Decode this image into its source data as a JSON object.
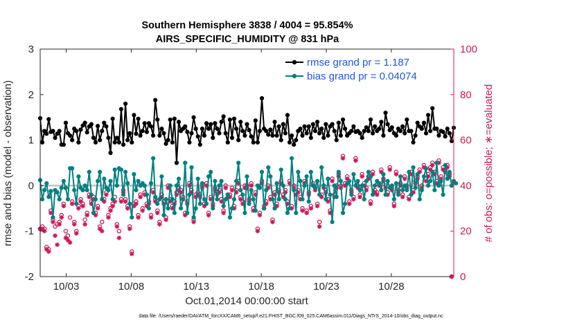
{
  "chart_data": {
    "type": "line",
    "title": "Southern Hemisphere 3838 / 4004 = 95.854%",
    "subtitle": "AIRS_SPECIFIC_HUMIDITY @ 831 hPa",
    "xlabel": "Oct.01,2014 00:00:00 start",
    "ylabel": "rmse and bias (model - observation)",
    "ylabel_right": "# of obs: o=possible; ∗=evaluated",
    "footnote": "data file: /Users/raeder/DAI/ATM_forcXX/CAM6_setup/f.e21.FHIST_BGC.f09_025.CAM6assim.011/Diags_NTrS_2014-10/obs_diag_output.nc",
    "xlim": [
      1,
      32.8
    ],
    "ylim": [
      -2,
      3
    ],
    "ylim_right": [
      0,
      100
    ],
    "x_ticks": [
      3,
      8,
      13,
      18,
      23,
      28
    ],
    "x_tick_labels": [
      "10/03",
      "10/08",
      "10/13",
      "10/18",
      "10/23",
      "10/28"
    ],
    "y_ticks": [
      -2,
      -1,
      0,
      1,
      2,
      3
    ],
    "y_tick_labels": [
      "-2",
      "-1",
      "0",
      "1",
      "2",
      "3"
    ],
    "y_right_ticks": [
      0,
      20,
      40,
      60,
      80,
      100
    ],
    "y_right_tick_labels": [
      "0",
      "20",
      "40",
      "60",
      "80",
      "100"
    ],
    "colors": {
      "rmse": "#000000",
      "bias": "#008080",
      "obs": "#cc1a59",
      "zero": "#bfbfbf",
      "legend_text": "#1f57d6"
    },
    "series": [
      {
        "name": "rmse",
        "legend": "rmse grand pr = 1.187",
        "values": [
          1.48,
          0.95,
          1.2,
          1.14,
          1.46,
          1.18,
          1.2,
          1.05,
          1.14,
          1.2,
          0.9,
          0.9,
          1.38,
          1.15,
          1.1,
          1.0,
          1.25,
          1.2,
          0.95,
          1.23,
          1.32,
          1.38,
          1.17,
          1.3,
          1.35,
          1.05,
          0.95,
          1.31,
          1.0,
          1.2,
          1.38,
          1.3,
          1.05,
          0.72,
          1.47,
          0.95,
          1.05,
          0.95,
          1.68,
          0.9,
          1.8,
          1.0,
          1.15,
          0.95,
          1.55,
          1.14,
          1.47,
          1.1,
          1.2,
          1.37,
          1.18,
          1.37,
          1.3,
          1.1,
          1.88,
          1.45,
          1.1,
          1.25,
          1.15,
          0.92,
          1.0,
          1.45,
          0.95,
          1.47,
          0.5,
          1.4,
          1.2,
          1.25,
          1.3,
          1.18,
          0.95,
          1.15,
          1.5,
          1.25,
          1.08,
          0.9,
          1.25,
          1.1,
          1.37,
          1.25,
          1.35,
          1.05,
          1.37,
          1.25,
          1.15,
          1.4,
          1.52,
          1.15,
          0.95,
          1.45,
          1.05,
          1.47,
          1.25,
          1.0,
          1.4,
          1.2,
          1.1,
          1.35,
          1.22,
          1.08,
          0.95,
          1.43,
          0.95,
          1.2,
          1.92,
          1.25,
          1.2,
          1.12,
          1.23,
          1.1,
          1.4,
          1.1,
          1.3,
          1.0,
          1.35,
          1.15,
          1.55,
          0.95,
          1.1,
          0.9,
          1.0,
          1.2,
          1.25,
          1.1,
          1.3,
          1.15,
          1.3,
          1.05,
          1.35,
          1.2,
          1.4,
          1.15,
          1.25,
          1.05,
          1.35,
          1.1,
          1.3,
          1.35,
          1.2,
          1.0,
          1.38,
          1.1,
          1.45,
          1.25,
          1.1,
          1.15,
          1.2,
          1.3,
          1.18,
          1.2,
          1.15,
          1.05,
          1.2,
          1.28,
          1.2,
          1.45,
          1.15,
          1.3,
          1.2,
          1.25,
          1.4,
          1.1,
          1.6,
          1.35,
          1.22,
          1.28,
          1.15,
          1.1,
          1.25,
          1.2,
          1.3,
          1.15,
          1.45,
          1.2,
          1.2,
          0.95,
          1.1,
          1.38,
          1.3,
          1.25,
          1.38,
          1.15,
          1.55,
          1.2,
          1.7,
          1.25,
          1.25,
          1.1,
          1.2,
          1.18,
          1.08,
          1.25,
          1.15,
          0.98,
          1.27
        ]
      },
      {
        "name": "bias",
        "legend": "bias grand pr = 0.04074",
        "values": [
          0.12,
          -0.3,
          -0.1,
          0.05,
          -0.25,
          -0.12,
          -0.7,
          -0.1,
          -0.15,
          -0.3,
          -0.05,
          0.1,
          -0.05,
          -0.3,
          0.38,
          0.38,
          -0.1,
          -0.4,
          0.2,
          -0.05,
          -0.1,
          0.0,
          -0.1,
          0.3,
          -0.2,
          -0.6,
          -0.3,
          0.1,
          0.3,
          -0.3,
          0.15,
          -0.05,
          -0.1,
          0.1,
          -0.3,
          0.35,
          0.0,
          0.38,
          0.35,
          -0.2,
          0.3,
          0.05,
          -0.4,
          -0.7,
          0.25,
          -0.1,
          0.1,
          0.0,
          0.05,
          0.0,
          -0.2,
          -0.5,
          0.05,
          0.6,
          -0.25,
          -0.4,
          -0.3,
          0.2,
          -0.65,
          -0.3,
          -0.5,
          0.0,
          -0.3,
          -0.6,
          0.0,
          0.15,
          -0.5,
          -0.3,
          0.5,
          -0.6,
          -0.2,
          0.4,
          -0.7,
          -0.5,
          0.15,
          -0.4,
          0.05,
          -0.3,
          -0.4,
          0.2,
          0.3,
          -0.5,
          0.1,
          -0.3,
          0.0,
          0.1,
          -0.45,
          -0.3,
          -0.2,
          -0.7,
          -0.5,
          -0.3,
          0.1,
          0.5,
          -0.1,
          -0.2,
          -0.6,
          0.2,
          -0.4,
          -0.1,
          -0.3,
          -0.55,
          0.0,
          -0.05,
          0.3,
          -0.5,
          -0.1,
          0.4,
          0.2,
          -0.3,
          -0.5,
          0.05,
          -0.3,
          0.35,
          0.0,
          -0.3,
          -0.6,
          -0.5,
          0.6,
          -0.1,
          -0.6,
          0.3,
          0.1,
          -0.3,
          0.0,
          0.2,
          -0.35,
          0.3,
          0.0,
          -0.05,
          0.1,
          -0.2,
          0.4,
          0.0,
          -0.3,
          0.15,
          -0.2,
          -0.8,
          0.0,
          -0.25,
          0.3,
          0.1,
          -0.6,
          -0.4,
          0.05,
          0.1,
          -0.2,
          0.25,
          0.0,
          0.1,
          -0.1,
          0.0,
          -0.3,
          0.1,
          0.3,
          0.2,
          -0.2,
          0.0,
          0.1,
          0.05,
          -0.1,
          0.25,
          -0.2,
          0.1,
          -0.05,
          0.0,
          -0.3,
          0.05,
          -0.2,
          0.2,
          -0.1,
          0.0,
          -0.1,
          0.3,
          -0.2,
          0.4,
          -0.05,
          0.25,
          -0.3,
          -0.1,
          0.2,
          0.38,
          0.0,
          0.1,
          0.3,
          -0.1,
          0.5,
          0.0,
          0.1,
          -0.2,
          0.45,
          0.15,
          0.3,
          0.0,
          0.1,
          0.05
        ]
      },
      {
        "name": "obs possible",
        "marker": "o",
        "values": [
          21,
          22,
          21,
          13,
          12,
          29,
          25,
          22,
          23,
          24,
          27,
          32,
          20,
          18,
          26,
          33,
          24,
          20,
          31,
          34,
          32,
          25,
          28,
          36,
          33,
          35,
          28,
          31,
          22,
          24,
          34,
          37,
          27,
          30,
          32,
          35,
          23,
          20,
          34,
          38,
          34,
          31,
          22,
          11,
          32,
          33,
          27,
          36,
          30,
          37,
          32,
          33,
          27,
          38,
          34,
          29,
          24,
          36,
          33,
          26,
          40,
          34,
          31,
          33,
          37,
          39,
          38,
          35,
          28,
          33,
          41,
          38,
          25,
          36,
          37,
          36,
          40,
          32,
          41,
          28,
          35,
          32,
          39,
          37,
          38,
          34,
          29,
          40,
          36,
          36,
          39,
          31,
          38,
          42,
          35,
          33,
          40,
          40,
          34,
          41,
          30,
          37,
          21,
          28,
          42,
          31,
          33,
          40,
          35,
          25,
          37,
          32,
          38,
          42,
          36,
          38,
          33,
          42,
          31,
          40,
          37,
          38,
          35,
          30,
          42,
          29,
          37,
          31,
          41,
          39,
          32,
          24,
          36,
          40,
          38,
          34,
          29,
          43,
          36,
          40,
          45,
          40,
          53,
          41,
          44,
          33,
          38,
          35,
          52,
          40,
          36,
          45,
          41,
          39,
          44,
          33,
          46,
          38,
          37,
          41,
          47,
          43,
          40,
          37,
          48,
          39,
          32,
          46,
          38,
          41,
          36,
          44,
          40,
          35,
          46,
          38,
          42,
          44,
          47,
          40,
          49,
          43,
          45,
          48,
          50,
          46,
          42,
          51,
          44,
          48,
          47,
          49,
          45,
          0
        ]
      },
      {
        "name": "obs evaluated",
        "marker": "*",
        "values": [
          21,
          21,
          20,
          12,
          11,
          28,
          24,
          18,
          14,
          23,
          26,
          31,
          17,
          16,
          15,
          32,
          23,
          19,
          30,
          33,
          31,
          23,
          27,
          35,
          32,
          34,
          27,
          30,
          21,
          20,
          33,
          36,
          26,
          29,
          31,
          33,
          22,
          17,
          33,
          37,
          33,
          30,
          21,
          10,
          31,
          32,
          26,
          35,
          29,
          36,
          31,
          32,
          26,
          37,
          33,
          28,
          23,
          35,
          32,
          25,
          39,
          33,
          30,
          32,
          36,
          38,
          37,
          34,
          27,
          32,
          40,
          37,
          24,
          35,
          36,
          35,
          39,
          31,
          40,
          27,
          34,
          31,
          38,
          36,
          37,
          33,
          28,
          39,
          35,
          35,
          38,
          30,
          37,
          41,
          34,
          32,
          39,
          39,
          33,
          40,
          29,
          36,
          20,
          27,
          41,
          30,
          32,
          39,
          34,
          24,
          36,
          31,
          37,
          41,
          35,
          37,
          32,
          41,
          30,
          39,
          36,
          37,
          34,
          29,
          41,
          28,
          36,
          30,
          40,
          38,
          31,
          22,
          35,
          39,
          37,
          33,
          28,
          42,
          35,
          39,
          44,
          39,
          52,
          40,
          43,
          32,
          37,
          34,
          51,
          39,
          35,
          44,
          40,
          38,
          43,
          32,
          45,
          37,
          36,
          40,
          46,
          42,
          39,
          36,
          47,
          38,
          31,
          45,
          37,
          40,
          35,
          43,
          39,
          34,
          45,
          37,
          41,
          43,
          46,
          39,
          48,
          42,
          44,
          47,
          49,
          45,
          41,
          50,
          43,
          47,
          46,
          48,
          44,
          0
        ]
      }
    ]
  }
}
